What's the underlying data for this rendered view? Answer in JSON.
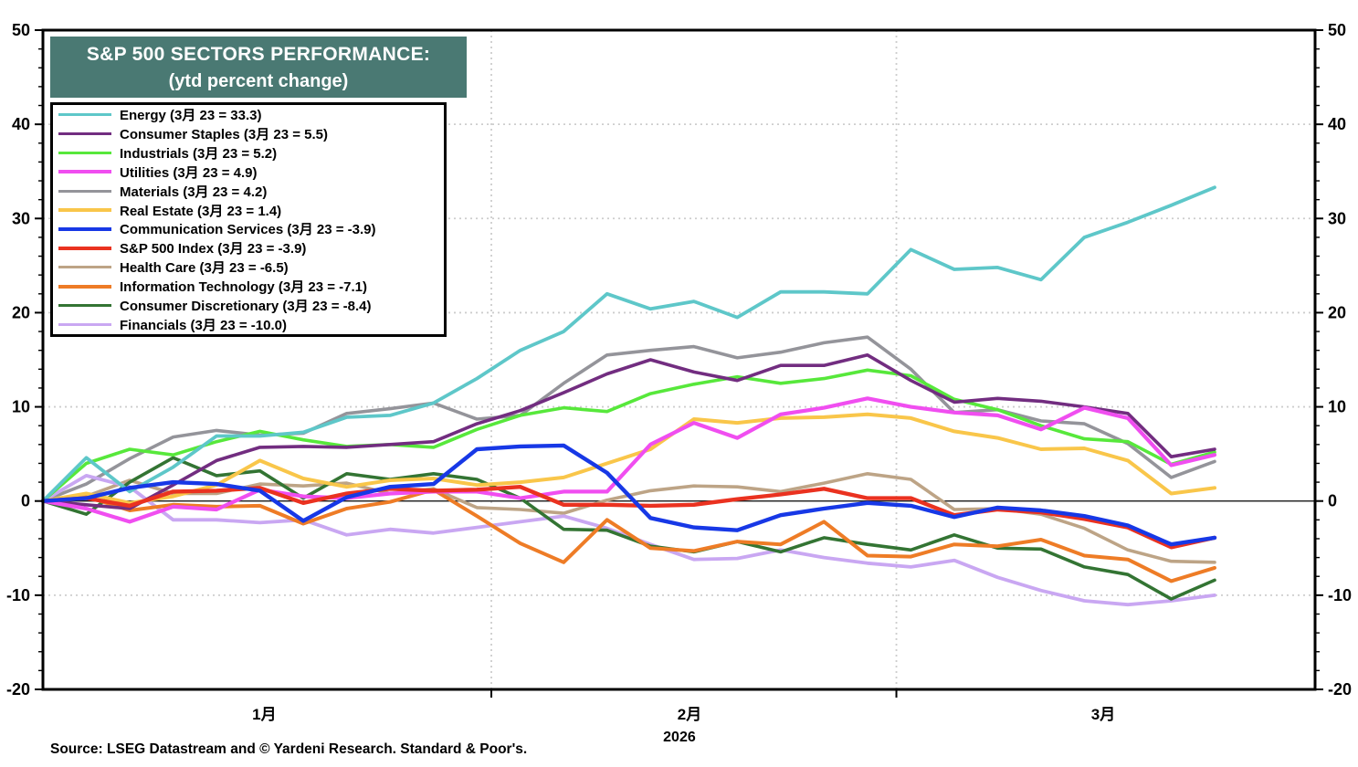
{
  "title": {
    "line1": "S&P 500 SECTORS PERFORMANCE:",
    "line2": "(ytd percent change)"
  },
  "source_note": "Source: LSEG Datastream and © Yardeni Research. Standard & Poor's.",
  "colors": {
    "title_bg": "#4a7973",
    "title_text": "#ffffff",
    "axis": "#000000",
    "grid_dotted": "#cdcdcd",
    "zero_line": "#000000",
    "plot_bg": "#ffffff"
  },
  "chart_data": {
    "type": "line",
    "title": "S&P 500 SECTORS PERFORMANCE: (ytd percent change)",
    "xlabel": "2026",
    "ylabel": "ytd percent change",
    "ylim": [
      -20,
      50
    ],
    "y_major_ticks": [
      50,
      40,
      30,
      20,
      10,
      0,
      -10,
      -20
    ],
    "y_minor_step": 2,
    "dotted_gridlines_y": [
      40,
      30,
      20,
      10,
      -10
    ],
    "grid": "dotted-major",
    "legend_position": "top-left",
    "x_unit": "days since Jan 1, 2026",
    "x": [
      0,
      3,
      6,
      9,
      12,
      15,
      18,
      21,
      24,
      27,
      30,
      33,
      36,
      39,
      42,
      45,
      48,
      51,
      54,
      57,
      60,
      63,
      66,
      69,
      72,
      75,
      78,
      81
    ],
    "sample_dates": [
      "1/1",
      "1/4",
      "1/7",
      "1/10",
      "1/13",
      "1/16",
      "1/19",
      "1/22",
      "1/25",
      "1/28",
      "1/31",
      "2/3",
      "2/6",
      "2/9",
      "2/12",
      "2/15",
      "2/18",
      "2/21",
      "2/24",
      "2/27",
      "3/2",
      "3/5",
      "3/8",
      "3/11",
      "3/14",
      "3/17",
      "3/20",
      "3/23"
    ],
    "month_boundary_days": [
      31,
      59
    ],
    "month_labels": [
      {
        "label": "1月",
        "day": 15.3
      },
      {
        "label": "2月",
        "day": 44.7
      },
      {
        "label": "3月",
        "day": 73.3
      }
    ],
    "year_label": {
      "label": "2026",
      "day": 44.0
    },
    "series": [
      {
        "name": "energy",
        "label": "Energy (3月 23 = 33.3)",
        "color": "#5ec7c9",
        "width": 3.8,
        "end_value": 33.3,
        "values": [
          0,
          4.6,
          1.0,
          3.6,
          6.9,
          6.9,
          7.3,
          8.9,
          9.1,
          10.4,
          13.0,
          16.0,
          18.0,
          22.0,
          20.4,
          21.2,
          19.5,
          22.2,
          22.2,
          22.0,
          26.7,
          24.6,
          24.8,
          23.5,
          28.0,
          29.6,
          31.4,
          33.3
        ]
      },
      {
        "name": "consumer-staples",
        "label": "Consumer Staples (3月 23 = 5.5)",
        "color": "#722d80",
        "width": 3.6,
        "end_value": 5.5,
        "values": [
          0,
          -0.4,
          -0.8,
          1.7,
          4.3,
          5.7,
          5.8,
          5.7,
          6.0,
          6.3,
          8.2,
          9.6,
          11.5,
          13.5,
          15.0,
          13.7,
          12.8,
          14.4,
          14.4,
          15.5,
          12.8,
          10.5,
          10.9,
          10.6,
          10.0,
          9.3,
          4.7,
          5.5
        ]
      },
      {
        "name": "industrials",
        "label": "Industrials (3月 23 = 5.2)",
        "color": "#57e83b",
        "width": 3.6,
        "end_value": 5.2,
        "values": [
          0,
          4.0,
          5.5,
          4.9,
          6.3,
          7.4,
          6.5,
          5.8,
          6.0,
          5.7,
          7.6,
          9.1,
          9.9,
          9.5,
          11.4,
          12.4,
          13.2,
          12.5,
          13.0,
          13.9,
          13.3,
          10.8,
          9.7,
          8.0,
          6.6,
          6.3,
          3.9,
          5.2
        ]
      },
      {
        "name": "utilities",
        "label": "Utilities (3月 23 = 4.9)",
        "color": "#f04ef0",
        "width": 4.2,
        "end_value": 4.9,
        "values": [
          0,
          -0.8,
          -2.2,
          -0.6,
          -0.9,
          1.2,
          0.5,
          0.3,
          0.8,
          1.0,
          1.0,
          0.3,
          1.0,
          1.0,
          6.0,
          8.3,
          6.7,
          9.2,
          9.9,
          10.9,
          10.0,
          9.4,
          9.1,
          7.6,
          9.9,
          8.8,
          3.8,
          4.9
        ]
      },
      {
        "name": "materials",
        "label": "Materials (3月 23 = 4.2)",
        "color": "#94949a",
        "width": 3.6,
        "end_value": 4.2,
        "values": [
          0,
          1.8,
          4.5,
          6.8,
          7.5,
          7.0,
          7.2,
          9.3,
          9.8,
          10.4,
          8.7,
          9.1,
          12.5,
          15.5,
          16.0,
          16.4,
          15.2,
          15.8,
          16.8,
          17.4,
          14.0,
          9.4,
          9.7,
          8.5,
          8.2,
          6.1,
          2.5,
          4.2
        ]
      },
      {
        "name": "real-estate",
        "label": "Real Estate (3月 23 = 1.4)",
        "color": "#f9c64a",
        "width": 4.0,
        "end_value": 1.4,
        "values": [
          0,
          0.8,
          -0.2,
          0.5,
          1.7,
          4.3,
          2.4,
          1.5,
          2.2,
          2.4,
          1.7,
          2.0,
          2.5,
          4.0,
          5.5,
          8.7,
          8.3,
          8.8,
          8.9,
          9.2,
          8.8,
          7.4,
          6.7,
          5.5,
          5.6,
          4.3,
          0.8,
          1.4
        ]
      },
      {
        "name": "communication-services",
        "label": "Communication Services (3月 23 = -3.9)",
        "color": "#1738e6",
        "width": 4.4,
        "end_value": -3.9,
        "values": [
          0,
          0.3,
          1.4,
          2.0,
          1.8,
          1.1,
          -2.1,
          0.4,
          1.5,
          1.8,
          5.5,
          5.8,
          5.9,
          3.0,
          -1.8,
          -2.8,
          -3.1,
          -1.5,
          -0.8,
          -0.2,
          -0.5,
          -1.7,
          -0.7,
          -1.0,
          -1.6,
          -2.6,
          -4.6,
          -3.9
        ]
      },
      {
        "name": "sp500-index",
        "label": "S&P 500 Index (3月 23 = -3.9)",
        "color": "#ea3220",
        "width": 4.4,
        "end_value": -3.9,
        "values": [
          0,
          0.3,
          -0.5,
          1.0,
          1.1,
          1.4,
          -0.2,
          0.8,
          1.3,
          1.1,
          1.2,
          1.5,
          -0.4,
          -0.4,
          -0.5,
          -0.4,
          0.2,
          0.7,
          1.3,
          0.3,
          0.3,
          -1.5,
          -0.9,
          -1.2,
          -1.9,
          -2.8,
          -4.9,
          -3.9
        ]
      },
      {
        "name": "health-care",
        "label": "Health Care (3月 23 = -6.5)",
        "color": "#bda486",
        "width": 3.6,
        "end_value": -6.5,
        "values": [
          0,
          0.5,
          2.2,
          0.8,
          0.8,
          1.8,
          1.6,
          1.9,
          0.8,
          1.3,
          -0.7,
          -0.9,
          -1.3,
          0.1,
          1.1,
          1.6,
          1.5,
          1.0,
          1.9,
          2.9,
          2.3,
          -0.9,
          -0.8,
          -1.4,
          -2.9,
          -5.2,
          -6.4,
          -6.5
        ]
      },
      {
        "name": "information-technology",
        "label": "Information Technology (3月 23 = -7.1)",
        "color": "#ee7c26",
        "width": 4.0,
        "end_value": -7.1,
        "values": [
          0,
          0.5,
          -1.0,
          -0.4,
          -0.6,
          -0.5,
          -2.4,
          -0.8,
          -0.1,
          1.2,
          -1.6,
          -4.5,
          -6.5,
          -2.0,
          -5.0,
          -5.3,
          -4.3,
          -4.6,
          -2.2,
          -5.8,
          -5.9,
          -4.6,
          -4.8,
          -4.1,
          -5.8,
          -6.2,
          -8.5,
          -7.1
        ]
      },
      {
        "name": "consumer-discretionary",
        "label": "Consumer Discretionary (3月 23 = -8.4)",
        "color": "#337433",
        "width": 3.6,
        "end_value": -8.4,
        "values": [
          0,
          -1.4,
          2.0,
          4.6,
          2.7,
          3.2,
          0.3,
          2.9,
          2.3,
          2.9,
          2.3,
          0.3,
          -3.0,
          -3.1,
          -4.8,
          -5.4,
          -4.3,
          -5.4,
          -3.9,
          -4.6,
          -5.2,
          -3.6,
          -5.0,
          -5.1,
          -7.0,
          -7.8,
          -10.4,
          -8.4
        ]
      },
      {
        "name": "financials",
        "label": "Financials (3月 23 = -10.0)",
        "color": "#c9a7f2",
        "width": 3.8,
        "end_value": -10.0,
        "values": [
          0,
          2.7,
          1.5,
          -2.0,
          -2.0,
          -2.3,
          -2.0,
          -3.6,
          -3.0,
          -3.4,
          -2.8,
          -2.2,
          -1.6,
          -2.9,
          -4.6,
          -6.2,
          -6.1,
          -5.2,
          -6.0,
          -6.6,
          -7.0,
          -6.3,
          -8.1,
          -9.5,
          -10.6,
          -11.0,
          -10.6,
          -10.0
        ]
      }
    ]
  }
}
